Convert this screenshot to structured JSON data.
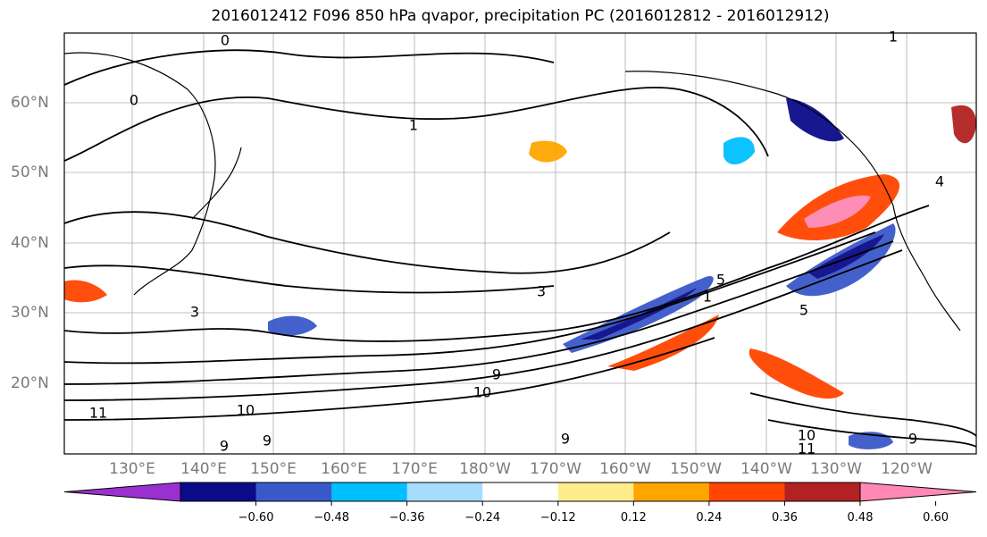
{
  "title": "2016012412 F096 850 hPa qvapor, precipitation PC (2016012812 - 2016012912)",
  "lon_labels": [
    "130°E",
    "140°E",
    "150°E",
    "160°E",
    "170°E",
    "180°W",
    "170°W",
    "160°W",
    "150°W",
    "140°W",
    "130°W",
    "120°W"
  ],
  "lat_labels": [
    "60°N",
    "50°N",
    "40°N",
    "30°N",
    "20°N"
  ],
  "colorbar": {
    "colors": [
      "#9b30d0",
      "#0b0b8a",
      "#3a59c9",
      "#00bfff",
      "#a6ddff",
      "#ffffff",
      "#ffec8b",
      "#ffa500",
      "#ff4500",
      "#b22222",
      "#ff88b4"
    ],
    "tick_labels": [
      "−0.60",
      "−0.48",
      "−0.36",
      "−0.24",
      "−0.12",
      "0.12",
      "0.24",
      "0.36",
      "0.48",
      "0.60"
    ]
  },
  "contour_labels": [
    "0",
    "0",
    "1",
    "1",
    "1",
    "3",
    "3",
    "4",
    "5",
    "5",
    "9",
    "9",
    "9",
    "9",
    "9",
    "10",
    "10",
    "10",
    "11",
    "11"
  ]
}
